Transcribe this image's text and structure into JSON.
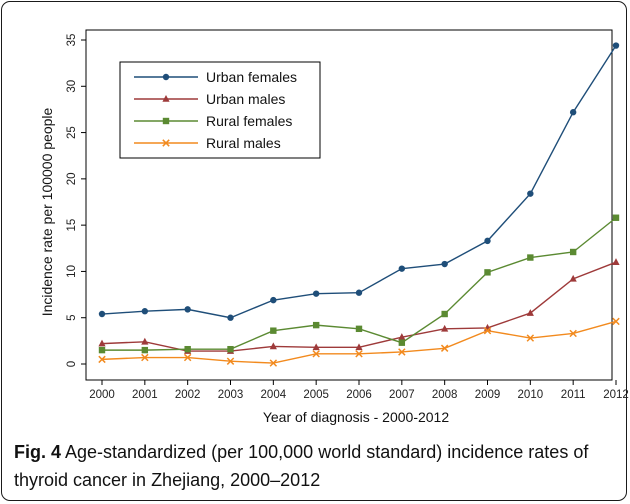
{
  "chart_data": {
    "type": "line",
    "x": [
      2000,
      2001,
      2002,
      2003,
      2004,
      2005,
      2006,
      2007,
      2008,
      2009,
      2010,
      2011,
      2012
    ],
    "xlabel": "Year of diagnosis - 2000-2012",
    "ylabel": "Incidence rate per 100000 people",
    "ylim": [
      0,
      35
    ],
    "yticks": [
      0,
      5,
      10,
      15,
      20,
      25,
      30,
      35
    ],
    "grid": false,
    "legend_position": "top-left",
    "series": [
      {
        "name": "Urban females",
        "color": "#1f4e79",
        "marker": "circle",
        "values": [
          5.4,
          5.7,
          5.9,
          5.0,
          6.9,
          7.6,
          7.7,
          10.3,
          10.8,
          13.3,
          18.4,
          27.2,
          34.4
        ]
      },
      {
        "name": "Urban males",
        "color": "#9e3a3a",
        "marker": "triangle",
        "values": [
          2.2,
          2.4,
          1.4,
          1.4,
          1.9,
          1.8,
          1.8,
          2.9,
          3.8,
          3.9,
          5.5,
          9.2,
          11.0
        ]
      },
      {
        "name": "Rural females",
        "color": "#5b8a32",
        "marker": "square",
        "values": [
          1.5,
          1.5,
          1.6,
          1.6,
          3.6,
          4.2,
          3.8,
          2.3,
          5.4,
          9.9,
          11.5,
          12.1,
          15.8
        ]
      },
      {
        "name": "Rural males",
        "color": "#f28a1e",
        "marker": "x",
        "values": [
          0.5,
          0.7,
          0.7,
          0.3,
          0.1,
          1.1,
          1.1,
          1.3,
          1.7,
          3.6,
          2.8,
          3.3,
          4.6
        ]
      }
    ]
  },
  "caption": {
    "label": "Fig. 4",
    "text": " Age-standardized (per 100,000 world standard) incidence rates of thyroid cancer in Zhejiang, 2000–2012"
  }
}
